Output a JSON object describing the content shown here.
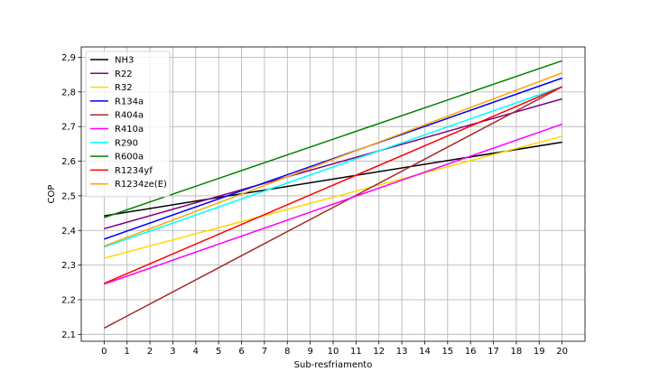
{
  "chart_data": {
    "type": "line",
    "title": "",
    "xlabel": "Sub-resfriamento",
    "ylabel": "COP",
    "xlim": [
      -1,
      21
    ],
    "ylim": [
      2.08,
      2.93
    ],
    "x_ticks": [
      0,
      1,
      2,
      3,
      4,
      5,
      6,
      7,
      8,
      9,
      10,
      11,
      12,
      13,
      14,
      15,
      16,
      17,
      18,
      19,
      20
    ],
    "y_ticks": [
      2.1,
      2.2,
      2.3,
      2.4,
      2.5,
      2.6,
      2.7,
      2.8,
      2.9
    ],
    "y_tick_labels": [
      "2,1",
      "2,2",
      "2,3",
      "2,4",
      "2,5",
      "2,6",
      "2,7",
      "2,8",
      "2,9"
    ],
    "grid": true,
    "legend_position": "top-left",
    "x": [
      0,
      20
    ],
    "series": [
      {
        "name": "NH3",
        "color": "#000000",
        "values": [
          2.442,
          2.655
        ]
      },
      {
        "name": "R22",
        "color": "#800080",
        "values": [
          2.405,
          2.78
        ]
      },
      {
        "name": "R32",
        "color": "#ffd700",
        "values": [
          2.32,
          2.672
        ]
      },
      {
        "name": "R134a",
        "color": "#0000ff",
        "values": [
          2.375,
          2.84
        ]
      },
      {
        "name": "R404a",
        "color": "#a52a2a",
        "values": [
          2.118,
          2.815
        ]
      },
      {
        "name": "R410a",
        "color": "#ff00ff",
        "values": [
          2.245,
          2.707
        ]
      },
      {
        "name": "R290",
        "color": "#00ffff",
        "values": [
          2.352,
          2.815
        ]
      },
      {
        "name": "R600a",
        "color": "#008000",
        "values": [
          2.437,
          2.89
        ]
      },
      {
        "name": "R1234yf",
        "color": "#ff0000",
        "values": [
          2.247,
          2.815
        ]
      },
      {
        "name": "R1234ze(E)",
        "color": "#ffa500",
        "values": [
          2.355,
          2.855
        ]
      }
    ]
  }
}
